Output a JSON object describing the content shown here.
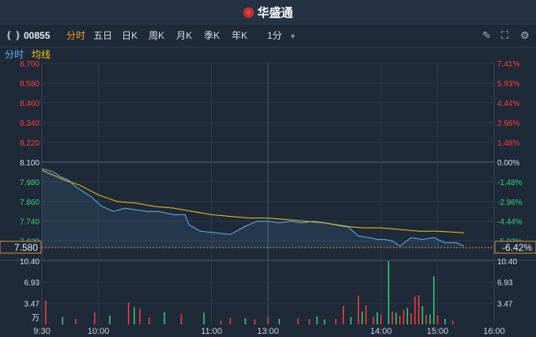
{
  "app": {
    "title": "华盛通",
    "logo_icon": "weibo-eye-icon"
  },
  "toolbar": {
    "stock_code": "00855",
    "tabs": [
      "分时",
      "五日",
      "日K",
      "周K",
      "月K",
      "季K",
      "年K"
    ],
    "active_tab": "分时",
    "interval": "1分",
    "icons": [
      "pen-icon",
      "fullscreen-icon",
      "settings-icon"
    ]
  },
  "legend": {
    "items": [
      "分时",
      "均线"
    ],
    "colors": [
      "#5eb3f5",
      "#f5c518"
    ]
  },
  "colors": {
    "up": "#ff3b3b",
    "down": "#33d17a",
    "price_line": "#5eb3f5",
    "avg_line": "#f5c518",
    "background": "#1f2a38"
  },
  "current": {
    "price_label": "7.580",
    "pct_label": "-6.42%"
  },
  "chart_data": [
    {
      "type": "line",
      "title": "",
      "x_tick_labels": [
        "9:30",
        "10:00",
        "11:00",
        "13:00",
        "14:00",
        "15:00",
        "16:00"
      ],
      "y_tick_labels_left": [
        "8.700",
        "8.580",
        "8.460",
        "8.340",
        "8.220",
        "8.100",
        "7.980",
        "7.860",
        "7.740",
        "7.620"
      ],
      "y_tick_values": [
        8.7,
        8.58,
        8.46,
        8.34,
        8.22,
        8.1,
        7.98,
        7.86,
        7.74,
        7.62
      ],
      "y_tick_labels_right": [
        "7.41%",
        "5.93%",
        "4.44%",
        "2.96%",
        "1.48%",
        "0.00%",
        "-1.48%",
        "-2.96%",
        "-4.44%",
        "-5.93%"
      ],
      "ylim": [
        7.58,
        8.7
      ],
      "prev_close": 8.1,
      "x_units": "trading minutes since 9:30 (120 = 11:30 = 13:00, 240 = 16:00)",
      "series": [
        {
          "x": [
            0,
            3,
            6,
            10,
            14,
            18,
            22,
            26,
            32,
            38,
            44,
            50,
            56,
            62,
            70,
            76,
            78,
            84,
            92,
            100,
            108,
            114,
            120,
            126,
            132,
            138,
            144,
            150,
            156,
            162,
            168,
            174,
            178,
            182,
            186,
            190,
            196,
            202,
            208,
            214,
            220,
            224
          ],
          "values": [
            8.06,
            8.05,
            8.04,
            8.01,
            7.99,
            7.95,
            7.92,
            7.89,
            7.83,
            7.8,
            7.82,
            7.81,
            7.8,
            7.8,
            7.78,
            7.78,
            7.72,
            7.68,
            7.67,
            7.66,
            7.71,
            7.74,
            7.74,
            7.73,
            7.74,
            7.73,
            7.74,
            7.73,
            7.72,
            7.71,
            7.65,
            7.64,
            7.63,
            7.63,
            7.62,
            7.59,
            7.64,
            7.63,
            7.64,
            7.61,
            7.61,
            7.59
          ]
        },
        {
          "x": [
            0,
            6,
            12,
            20,
            30,
            40,
            50,
            60,
            70,
            80,
            90,
            100,
            110,
            120,
            130,
            140,
            150,
            160,
            170,
            180,
            190,
            200,
            210,
            224
          ],
          "values": [
            8.05,
            8.02,
            7.99,
            7.96,
            7.9,
            7.86,
            7.85,
            7.83,
            7.82,
            7.8,
            7.78,
            7.77,
            7.76,
            7.76,
            7.75,
            7.74,
            7.73,
            7.71,
            7.7,
            7.7,
            7.69,
            7.68,
            7.68,
            7.67
          ]
        }
      ]
    },
    {
      "type": "bar",
      "title": "",
      "y_tick_labels": [
        "10.40",
        "6.93",
        "3.47",
        "万"
      ],
      "ylim": [
        0,
        10.4
      ],
      "unit": "万",
      "x": [
        2,
        11,
        18,
        28,
        36,
        46,
        49,
        52,
        57,
        65,
        74,
        86,
        95,
        100,
        108,
        113,
        120,
        126,
        136,
        142,
        146,
        150,
        156,
        160,
        164,
        168,
        170,
        172,
        176,
        178,
        180,
        184,
        186,
        188,
        190,
        192,
        194,
        196,
        198,
        200,
        202,
        204,
        206,
        208,
        210,
        214,
        218
      ],
      "values": [
        3.9,
        1.2,
        0.9,
        2.0,
        1.4,
        3.6,
        2.8,
        2.6,
        1.1,
        2.0,
        1.7,
        1.9,
        0.6,
        1.1,
        1.0,
        0.8,
        1.2,
        0.9,
        1.0,
        0.9,
        1.3,
        0.8,
        0.9,
        3.0,
        1.2,
        4.7,
        2.1,
        3.1,
        1.3,
        2.0,
        1.6,
        10.4,
        2.1,
        1.9,
        1.4,
        2.4,
        2.7,
        1.8,
        4.6,
        4.8,
        3.0,
        1.6,
        1.7,
        7.9,
        1.5,
        0.9,
        0.6
      ],
      "up": [
        true,
        false,
        true,
        true,
        false,
        true,
        false,
        true,
        true,
        false,
        true,
        false,
        true,
        true,
        false,
        true,
        true,
        false,
        true,
        true,
        false,
        false,
        true,
        true,
        false,
        true,
        false,
        true,
        true,
        false,
        true,
        false,
        true,
        false,
        true,
        true,
        false,
        true,
        true,
        true,
        false,
        true,
        false,
        false,
        true,
        false,
        true
      ]
    }
  ]
}
